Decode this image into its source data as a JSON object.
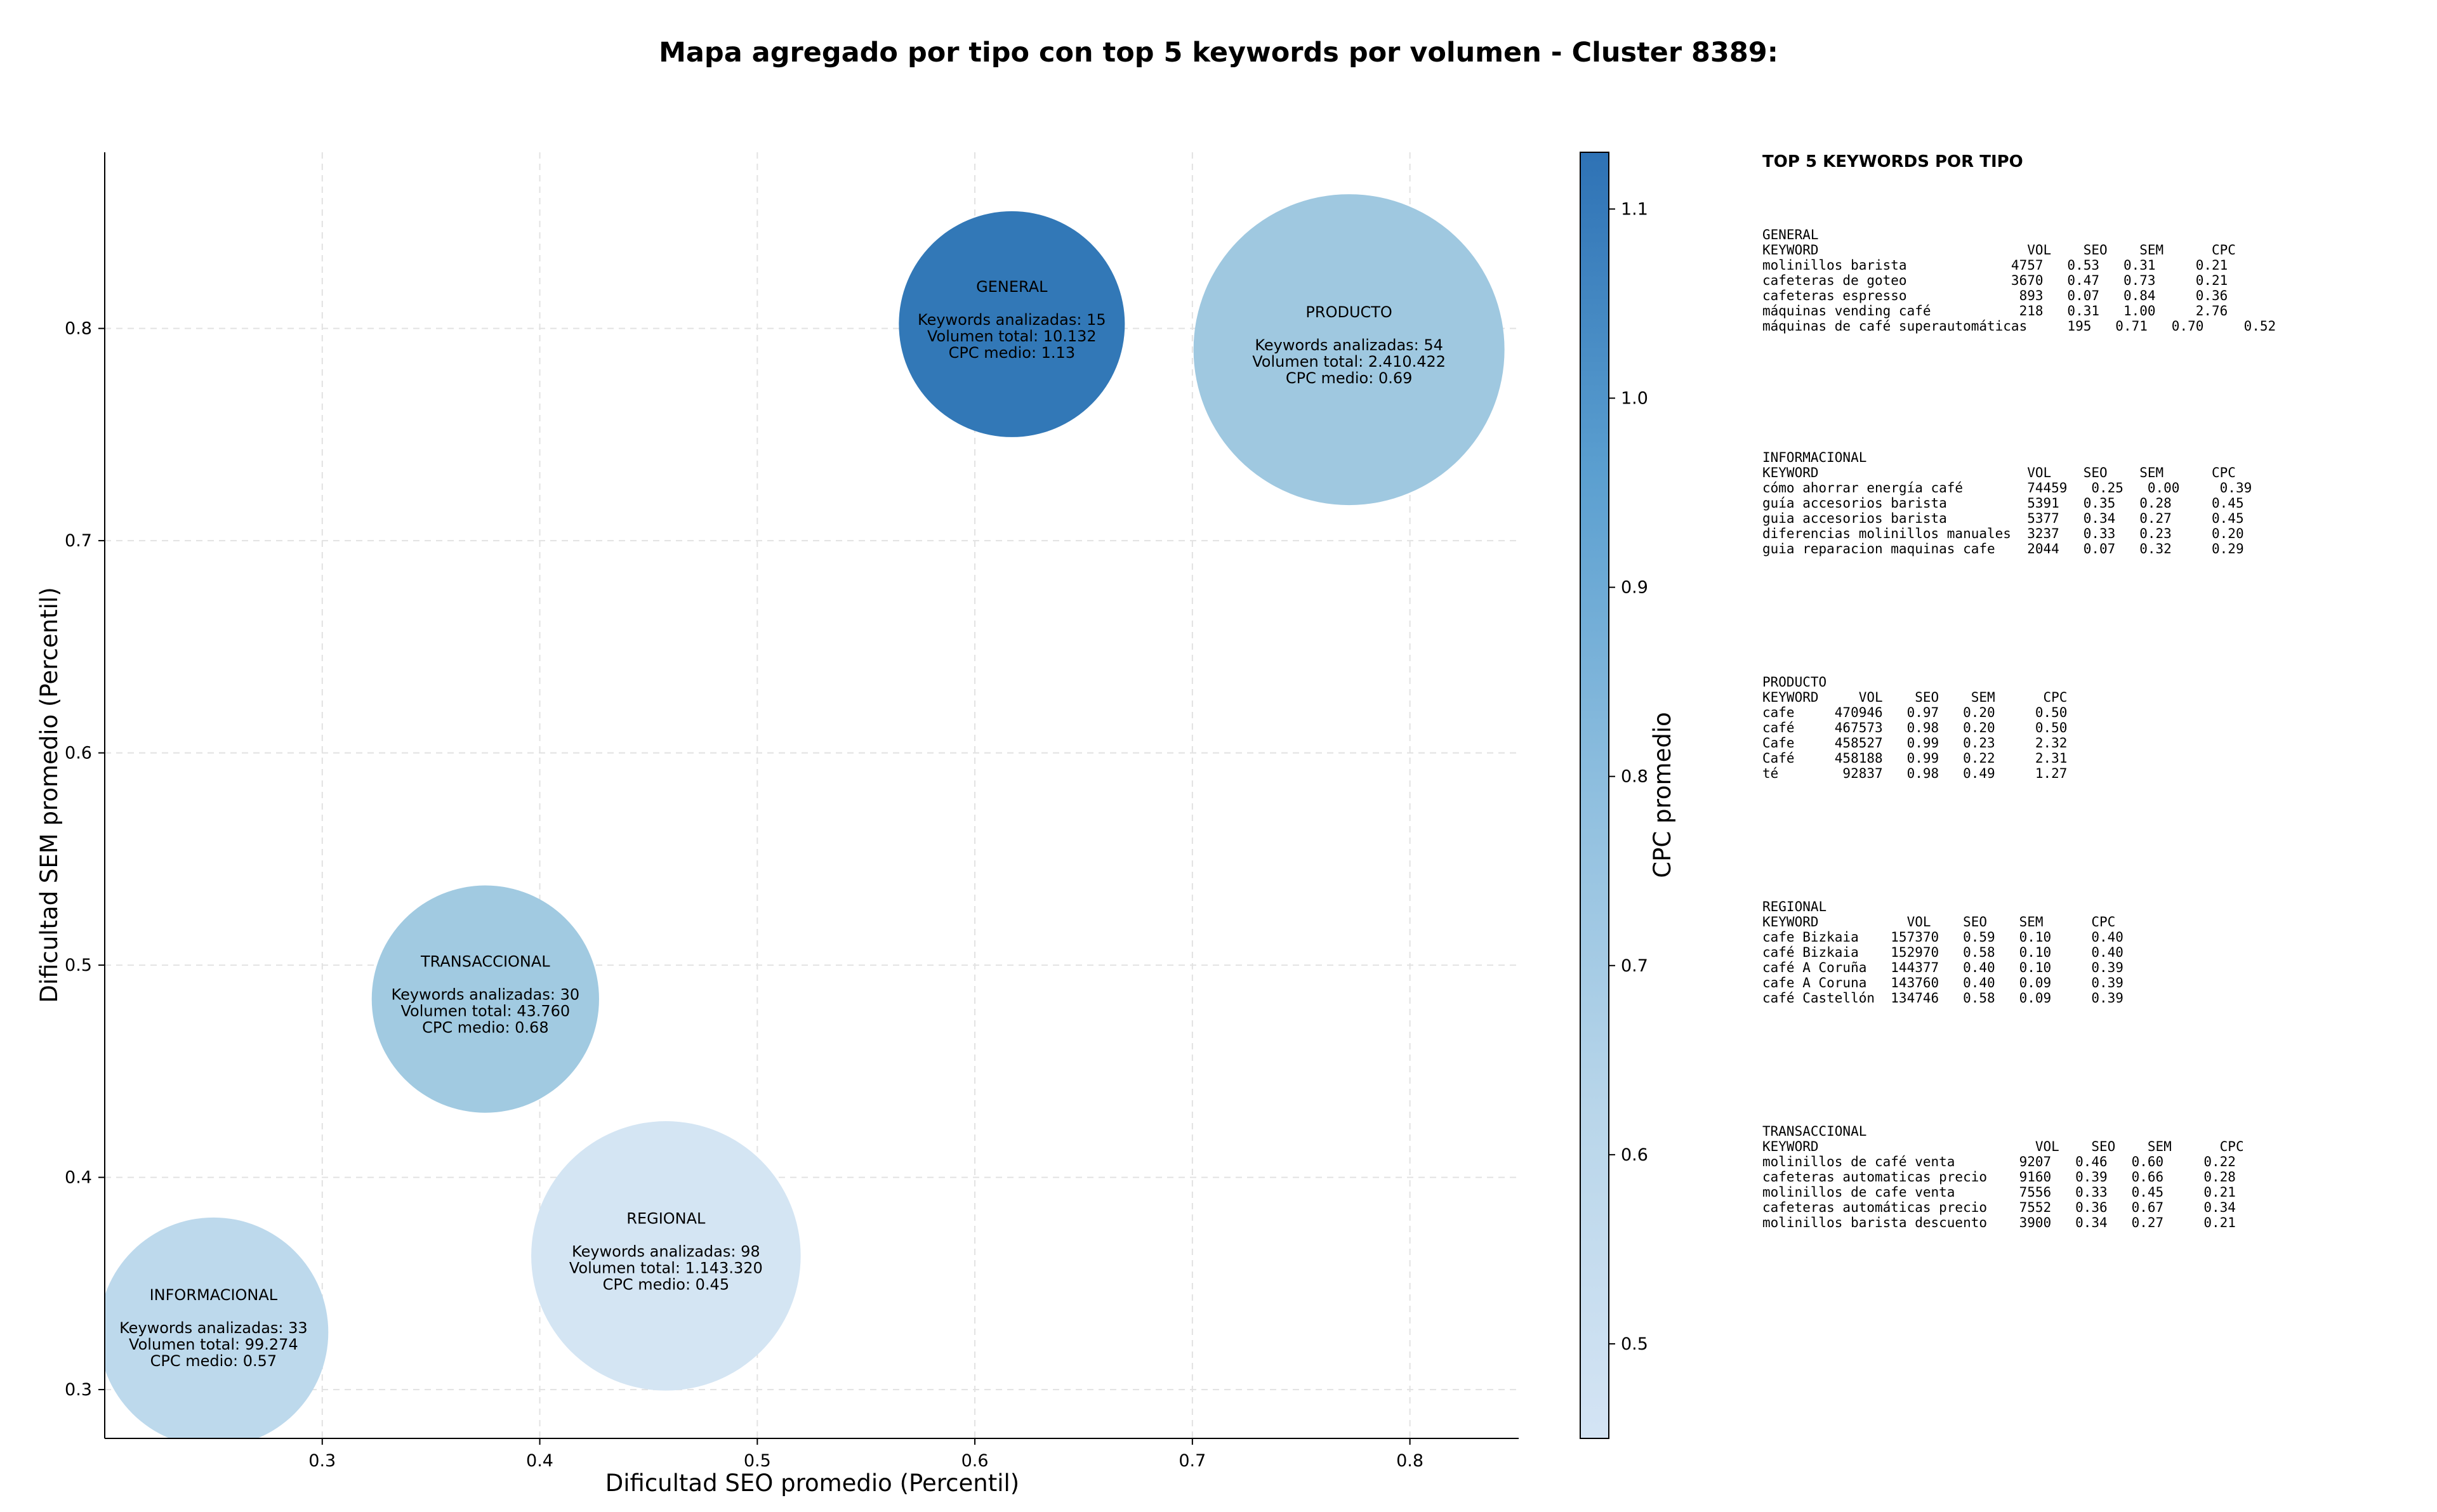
{
  "chart_data": {
    "type": "scatter",
    "title": "Mapa agregado por tipo con top 5 keywords por volumen - Cluster 8389:",
    "xlabel": "Dificultad SEO promedio (Percentil)",
    "ylabel": "Dificultad SEM promedio (Percentil)",
    "xlim": [
      0.2,
      0.85
    ],
    "ylim": [
      0.277,
      0.883
    ],
    "x_ticks": [
      "0.3",
      "0.4",
      "0.5",
      "0.6",
      "0.7",
      "0.8"
    ],
    "y_ticks": [
      "0.3",
      "0.4",
      "0.5",
      "0.6",
      "0.7",
      "0.8"
    ],
    "grid": true,
    "colorbar": {
      "label": "CPC promedio",
      "min": 0.45,
      "max": 1.13,
      "ticks": [
        "0.5",
        "0.6",
        "0.7",
        "0.8",
        "0.9",
        "1.0",
        "1.1"
      ]
    },
    "bubbles": [
      {
        "name": "GENERAL",
        "x": 0.617,
        "y": 0.802,
        "cpc": 1.13,
        "volume": 10132,
        "line1": "Keywords analizadas: 15",
        "line2": "Volumen total: 10.132",
        "line3": "CPC medio: 1.13",
        "color": "#2e75b6"
      },
      {
        "name": "PRODUCTO",
        "x": 0.772,
        "y": 0.79,
        "cpc": 0.69,
        "volume": 2410422,
        "line1": "Keywords analizadas: 54",
        "line2": "Volumen total: 2.410.422",
        "line3": "CPC medio: 0.69",
        "color": "#9dc7df"
      },
      {
        "name": "TRANSACCIONAL",
        "x": 0.375,
        "y": 0.484,
        "cpc": 0.68,
        "volume": 43760,
        "line1": "Keywords analizadas: 30",
        "line2": "Volumen total: 43.760",
        "line3": "CPC medio: 0.68",
        "color": "#9fc9e0"
      },
      {
        "name": "REGIONAL",
        "x": 0.458,
        "y": 0.363,
        "cpc": 0.45,
        "volume": 1143320,
        "line1": "Keywords analizadas: 98",
        "line2": "Volumen total: 1.143.320",
        "line3": "CPC medio: 0.45",
        "color": "#d3e4f3"
      },
      {
        "name": "INFORMACIONAL",
        "x": 0.25,
        "y": 0.327,
        "cpc": 0.57,
        "volume": 99274,
        "line1": "Keywords analizadas: 33",
        "line2": "Volumen total: 99.274",
        "line3": "CPC medio: 0.57",
        "color": "#bcd8ec"
      }
    ]
  },
  "side_panel": {
    "heading": "TOP 5 KEYWORDS POR TIPO",
    "sections": [
      {
        "name": "GENERAL",
        "header": "KEYWORD                          VOL    SEO    SEM      CPC",
        "rows": [
          "molinillos barista             4757   0.53   0.31     0.21",
          "cafeteras de goteo             3670   0.47   0.73     0.21",
          "cafeteras espresso              893   0.07   0.84     0.36",
          "máquinas vending café           218   0.31   1.00     2.76",
          "máquinas de café superautomáticas     195   0.71   0.70     0.52"
        ]
      },
      {
        "name": "INFORMACIONAL",
        "header": "KEYWORD                          VOL    SEO    SEM      CPC",
        "rows": [
          "cómo ahorrar energía café        74459   0.25   0.00     0.39",
          "guía accesorios barista          5391   0.35   0.28     0.45",
          "guia accesorios barista          5377   0.34   0.27     0.45",
          "diferencias molinillos manuales  3237   0.33   0.23     0.20",
          "guia reparacion maquinas cafe    2044   0.07   0.32     0.29"
        ]
      },
      {
        "name": "PRODUCTO",
        "header": "KEYWORD     VOL    SEO    SEM      CPC",
        "rows": [
          "cafe     470946   0.97   0.20     0.50",
          "café     467573   0.98   0.20     0.50",
          "Cafe     458527   0.99   0.23     2.32",
          "Café     458188   0.99   0.22     2.31",
          "té        92837   0.98   0.49     1.27"
        ]
      },
      {
        "name": "REGIONAL",
        "header": "KEYWORD           VOL    SEO    SEM      CPC",
        "rows": [
          "cafe Bizkaia    157370   0.59   0.10     0.40",
          "café Bizkaia    152970   0.58   0.10     0.40",
          "café A Coruña   144377   0.40   0.10     0.39",
          "cafe A Coruna   143760   0.40   0.09     0.39",
          "café Castellón  134746   0.58   0.09     0.39"
        ]
      },
      {
        "name": "TRANSACCIONAL",
        "header": "KEYWORD                           VOL    SEO    SEM      CPC",
        "rows": [
          "molinillos de café venta        9207   0.46   0.60     0.22",
          "cafeteras automaticas precio    9160   0.39   0.66     0.28",
          "molinillos de cafe venta        7556   0.33   0.45     0.21",
          "cafeteras automáticas precio    7552   0.36   0.67     0.34",
          "molinillos barista descuento    3900   0.34   0.27     0.21"
        ]
      }
    ]
  }
}
